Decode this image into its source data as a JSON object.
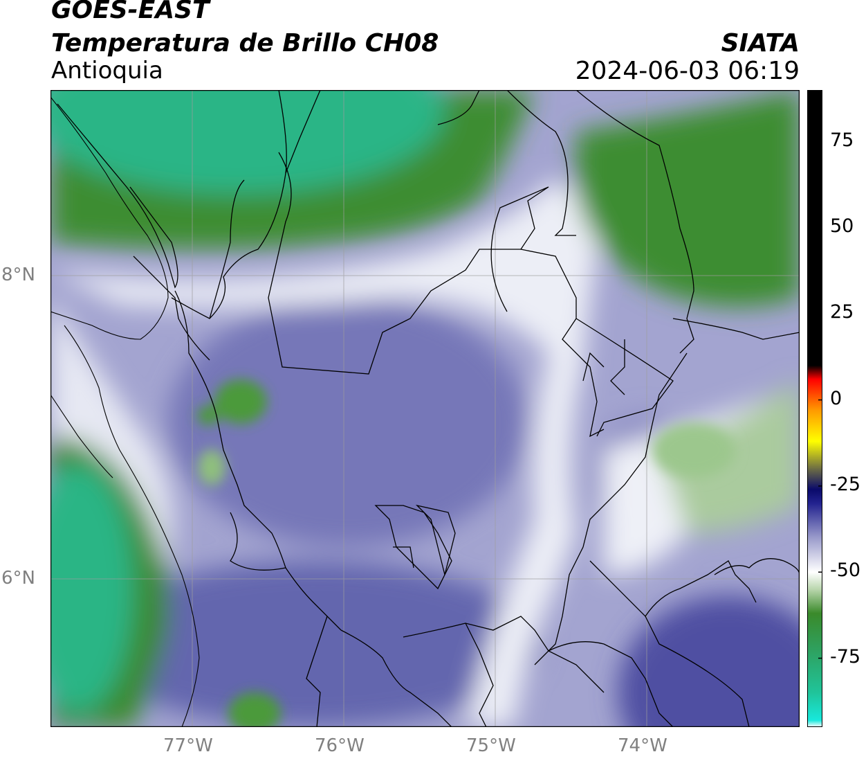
{
  "header": {
    "satellite": "GOES-EAST",
    "product": "Temperatura de Brillo CH08",
    "region": "Antioquia",
    "agency": "SIATA",
    "datetime": "2024-06-03 06:19"
  },
  "map": {
    "lon_range": [
      -77.95,
      -73.0
    ],
    "lat_range": [
      4.95,
      9.15
    ],
    "lon_ticks": [
      "77°W",
      "76°W",
      "75°W",
      "74°W"
    ],
    "lat_ticks": [
      "8°N",
      "6°N"
    ],
    "gridlines": true,
    "colors": {
      "cold_cloud": "#5454a6",
      "mid": "#9b9ccc",
      "white": "#f2f3f8",
      "green": "#3b8a2e",
      "teal": "#2bb585",
      "border": "#000000",
      "grid": "#9e9e9e"
    }
  },
  "colorbar": {
    "ticks": [
      "75",
      "50",
      "25",
      "0",
      "-25",
      "-50",
      "-75"
    ],
    "range": [
      -95,
      90
    ],
    "stops": [
      {
        "v": -95,
        "c": "#ffffff"
      },
      {
        "v": -93,
        "c": "#18e8dc"
      },
      {
        "v": -85,
        "c": "#20c49a"
      },
      {
        "v": -72,
        "c": "#2f9f5c"
      },
      {
        "v": -62,
        "c": "#3a8a2a"
      },
      {
        "v": -55,
        "c": "#b9d6ad"
      },
      {
        "v": -50,
        "c": "#ffffff"
      },
      {
        "v": -40,
        "c": "#9a9bcb"
      },
      {
        "v": -30,
        "c": "#22228f"
      },
      {
        "v": -26,
        "c": "#0a0a6a"
      },
      {
        "v": -20,
        "c": "#6c6c44"
      },
      {
        "v": -12,
        "c": "#ffff00"
      },
      {
        "v": -3,
        "c": "#ff9a00"
      },
      {
        "v": 6,
        "c": "#ff0000"
      },
      {
        "v": 10,
        "c": "#000000"
      },
      {
        "v": 90,
        "c": "#000000"
      }
    ]
  }
}
